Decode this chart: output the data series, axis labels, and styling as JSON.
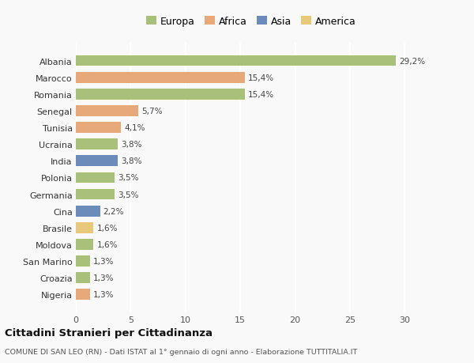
{
  "countries": [
    "Albania",
    "Marocco",
    "Romania",
    "Senegal",
    "Tunisia",
    "Ucraina",
    "India",
    "Polonia",
    "Germania",
    "Cina",
    "Brasile",
    "Moldova",
    "San Marino",
    "Croazia",
    "Nigeria"
  ],
  "values": [
    29.2,
    15.4,
    15.4,
    5.7,
    4.1,
    3.8,
    3.8,
    3.5,
    3.5,
    2.2,
    1.6,
    1.6,
    1.3,
    1.3,
    1.3
  ],
  "labels": [
    "29,2%",
    "15,4%",
    "15,4%",
    "5,7%",
    "4,1%",
    "3,8%",
    "3,8%",
    "3,5%",
    "3,5%",
    "2,2%",
    "1,6%",
    "1,6%",
    "1,3%",
    "1,3%",
    "1,3%"
  ],
  "continents": [
    "Europa",
    "Africa",
    "Europa",
    "Africa",
    "Africa",
    "Europa",
    "Asia",
    "Europa",
    "Europa",
    "Asia",
    "America",
    "Europa",
    "Europa",
    "Europa",
    "Africa"
  ],
  "colors": {
    "Europa": "#a8c07a",
    "Africa": "#e8a97a",
    "Asia": "#6b8cba",
    "America": "#e8c87a"
  },
  "legend_order": [
    "Europa",
    "Africa",
    "Asia",
    "America"
  ],
  "title": "Cittadini Stranieri per Cittadinanza",
  "subtitle": "COMUNE DI SAN LEO (RN) - Dati ISTAT al 1° gennaio di ogni anno - Elaborazione TUTTITALIA.IT",
  "xlim": [
    0,
    32
  ],
  "xticks": [
    0,
    5,
    10,
    15,
    20,
    25,
    30
  ],
  "bg_color": "#f9f9f9",
  "grid_color": "#e0e0e0",
  "bar_height": 0.65
}
